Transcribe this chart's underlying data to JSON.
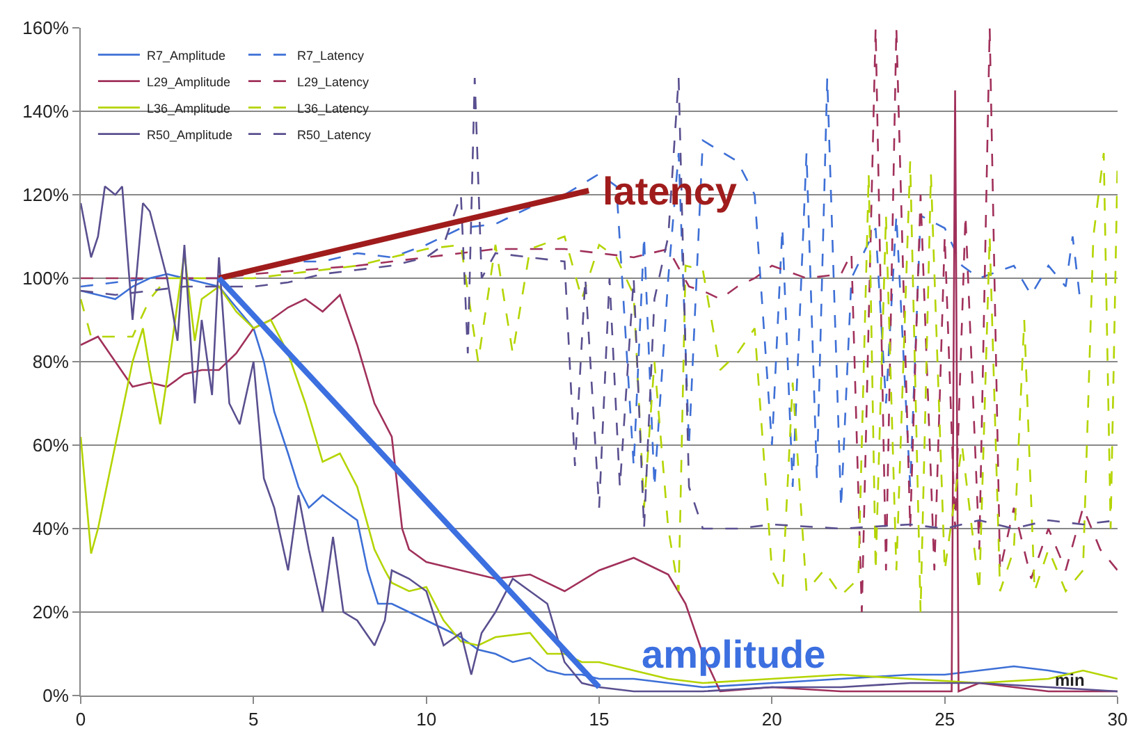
{
  "chart_data": {
    "type": "line",
    "xlabel": "min",
    "xlim": [
      0,
      30
    ],
    "xticks": [
      0,
      5,
      10,
      15,
      20,
      25,
      30
    ],
    "ylim": [
      0,
      160
    ],
    "yticks": [
      {
        "value": 0,
        "label": "0%"
      },
      {
        "value": 20,
        "label": "20%"
      },
      {
        "value": 40,
        "label": "40%"
      },
      {
        "value": 60,
        "label": "60%"
      },
      {
        "value": 80,
        "label": "80%"
      },
      {
        "value": 100,
        "label": "100%"
      },
      {
        "value": 120,
        "label": "120%"
      },
      {
        "value": 140,
        "label": "140%"
      },
      {
        "value": 160,
        "label": "160%"
      }
    ],
    "grid": "y",
    "legend": "top left",
    "marker": "none",
    "annotations": [
      "latency",
      "amplitude"
    ],
    "series": [
      {
        "name": "R7_Amplitude",
        "color": "#3d6fd6",
        "line_style": "solid",
        "x": [
          0,
          0.5,
          1,
          1.5,
          2,
          2.5,
          3,
          3.5,
          4,
          4.5,
          5,
          5.3,
          5.6,
          6,
          6.3,
          6.6,
          7,
          7.5,
          8,
          8.3,
          8.6,
          9,
          9.5,
          10,
          10.5,
          11,
          11.5,
          12,
          12.5,
          13,
          13.5,
          14,
          14.5,
          15,
          16,
          17,
          18,
          20,
          22,
          24,
          25,
          26,
          27,
          28,
          28.7
        ],
        "values": [
          97,
          96,
          95,
          98,
          100,
          101,
          100,
          99,
          98,
          93,
          88,
          80,
          68,
          58,
          50,
          45,
          48,
          45,
          42,
          30,
          22,
          22,
          20,
          18,
          16,
          14,
          11,
          10,
          8,
          9,
          6,
          5,
          5,
          4,
          4,
          3,
          2,
          3,
          4,
          5,
          5,
          6,
          7,
          6,
          5
        ]
      },
      {
        "name": "R7_Latency",
        "color": "#3d6fd6",
        "line_style": "dashed",
        "x": [
          0,
          1,
          2,
          3,
          4,
          5,
          6,
          7,
          8,
          9,
          10,
          11,
          12,
          13,
          14,
          15,
          15.5,
          16,
          16.3,
          16.6,
          17,
          17.3,
          17.6,
          18,
          19,
          19.5,
          20,
          20.3,
          20.6,
          21,
          21.3,
          21.6,
          22,
          22.3,
          23,
          23.3,
          23.6,
          24,
          24.3,
          25,
          25.5,
          26,
          27,
          27.5,
          28,
          28.5,
          28.7,
          28.9
        ],
        "values": [
          98,
          99,
          100,
          100,
          100,
          102,
          104,
          104,
          106,
          105,
          108,
          112,
          113,
          117,
          120,
          125,
          122,
          55,
          110,
          50,
          100,
          130,
          60,
          133,
          128,
          120,
          60,
          112,
          50,
          130,
          52,
          148,
          45,
          100,
          112,
          70,
          115,
          50,
          115,
          112,
          103,
          100,
          103,
          96,
          103,
          98,
          110,
          96
        ]
      },
      {
        "name": "L29_Amplitude",
        "color": "#a0305a",
        "line_style": "solid",
        "x": [
          0,
          0.5,
          1,
          1.5,
          2,
          2.5,
          3,
          3.5,
          4,
          4.5,
          5,
          5.5,
          6,
          6.5,
          7,
          7.5,
          8,
          8.5,
          9,
          9.3,
          9.5,
          10,
          11,
          12,
          13,
          14,
          15,
          16,
          17,
          17.5,
          18,
          18.5,
          20,
          22,
          24,
          25.2,
          25.3,
          25.4,
          26,
          27,
          28,
          30
        ],
        "values": [
          84,
          86,
          80,
          74,
          75,
          74,
          77,
          78,
          78,
          82,
          88,
          90,
          93,
          95,
          92,
          96,
          84,
          70,
          62,
          40,
          35,
          32,
          30,
          28,
          29,
          25,
          30,
          33,
          29,
          22,
          10,
          1,
          2,
          1,
          1,
          1,
          145,
          1,
          3,
          2,
          1,
          1
        ]
      },
      {
        "name": "L29_Latency",
        "color": "#a0305a",
        "line_style": "dashed",
        "x": [
          0,
          3,
          4,
          5,
          8,
          10,
          12,
          14,
          15,
          16,
          17,
          17.6,
          18,
          18.5,
          19,
          19.5,
          20,
          21,
          22,
          22.3,
          22.6,
          23,
          23.3,
          23.6,
          24,
          24.3,
          24.7,
          25,
          25.3,
          25.6,
          26,
          26.3,
          26.6,
          27,
          27.5,
          28,
          28.5,
          29,
          29.5,
          30
        ],
        "values": [
          100,
          100,
          100,
          101,
          103,
          105,
          107,
          107,
          106,
          105,
          107,
          98,
          97,
          95,
          98,
          100,
          103,
          100,
          101,
          106,
          20,
          160,
          30,
          160,
          40,
          120,
          30,
          110,
          40,
          115,
          35,
          160,
          30,
          45,
          28,
          40,
          30,
          45,
          35,
          30
        ]
      },
      {
        "name": "L36_Amplitude",
        "color": "#b4d400",
        "line_style": "solid",
        "x": [
          0,
          0.3,
          0.5,
          1,
          1.5,
          1.8,
          2,
          2.3,
          2.5,
          3,
          3.3,
          3.5,
          4,
          4.5,
          5,
          5.5,
          6,
          6.5,
          7,
          7.5,
          8,
          8.5,
          8.8,
          9,
          9.5,
          10,
          10.5,
          11,
          11.5,
          12,
          13,
          13.5,
          14,
          14.5,
          15,
          16,
          17,
          18,
          20,
          22,
          24,
          26,
          28,
          29,
          30
        ],
        "values": [
          62,
          34,
          40,
          60,
          80,
          88,
          78,
          65,
          76,
          106,
          85,
          95,
          98,
          92,
          88,
          90,
          82,
          70,
          56,
          58,
          50,
          35,
          30,
          27,
          25,
          26,
          18,
          13,
          12,
          14,
          15,
          10,
          10,
          8,
          8,
          6,
          4,
          3,
          4,
          5,
          4,
          3,
          4,
          6,
          4
        ]
      },
      {
        "name": "L36_Latency",
        "color": "#b4d400",
        "line_style": "dashed",
        "x": [
          0,
          0.3,
          1,
          1.5,
          2,
          2.5,
          3,
          4,
          5,
          6,
          8,
          10,
          11,
          11.5,
          12,
          12.5,
          13,
          14,
          14.5,
          15,
          15.5,
          16,
          16.3,
          16.6,
          17,
          17.3,
          17.5,
          18,
          18.5,
          19,
          19.5,
          20,
          20.3,
          20.6,
          21,
          21.5,
          22,
          22.5,
          22.8,
          23,
          23.3,
          23.6,
          24,
          24.3,
          24.6,
          25,
          25.5,
          26,
          26.3,
          26.6,
          27,
          27.3,
          27.6,
          28,
          28.5,
          29,
          29.3,
          29.6,
          29.8,
          30
        ],
        "values": [
          95,
          86,
          86,
          86,
          95,
          100,
          100,
          100,
          100,
          101,
          103,
          107,
          108,
          80,
          108,
          82,
          107,
          110,
          95,
          108,
          105,
          96,
          45,
          80,
          40,
          25,
          103,
          102,
          78,
          82,
          88,
          30,
          25,
          75,
          25,
          30,
          24,
          28,
          125,
          30,
          115,
          30,
          128,
          20,
          125,
          30,
          60,
          25,
          110,
          25,
          35,
          90,
          25,
          35,
          25,
          30,
          110,
          130,
          40,
          128
        ]
      },
      {
        "name": "R50_Amplitude",
        "color": "#5a4f8f",
        "line_style": "solid",
        "x": [
          0,
          0.3,
          0.5,
          0.7,
          1,
          1.2,
          1.5,
          1.8,
          2,
          2.5,
          2.8,
          3,
          3.3,
          3.5,
          3.8,
          4,
          4.3,
          4.6,
          5,
          5.3,
          5.6,
          6,
          6.3,
          6.6,
          7,
          7.3,
          7.6,
          8,
          8.5,
          8.8,
          9,
          9.5,
          10,
          10.5,
          11,
          11.3,
          11.6,
          12,
          12.5,
          13,
          13.5,
          14,
          14.5,
          15,
          16,
          18,
          20,
          22,
          24,
          26,
          28,
          30
        ],
        "values": [
          118,
          105,
          110,
          122,
          120,
          122,
          90,
          118,
          116,
          100,
          85,
          108,
          70,
          90,
          72,
          105,
          70,
          65,
          80,
          52,
          45,
          30,
          48,
          35,
          20,
          38,
          20,
          18,
          12,
          18,
          30,
          28,
          25,
          12,
          15,
          5,
          15,
          20,
          28,
          25,
          22,
          8,
          3,
          2,
          1,
          1,
          2,
          2,
          3,
          3,
          2,
          1
        ]
      },
      {
        "name": "R50_Latency",
        "color": "#5a4f8f",
        "line_style": "dashed",
        "x": [
          0,
          1,
          2,
          3,
          4,
          5,
          6,
          7,
          8,
          9,
          10,
          10.5,
          11,
          11.2,
          11.4,
          11.6,
          12,
          13,
          14,
          14.3,
          14.6,
          15,
          15.3,
          15.6,
          16,
          16.3,
          16.6,
          17,
          17.3,
          17.6,
          18,
          19,
          20,
          22,
          24,
          25,
          26,
          27,
          28,
          29,
          30
        ],
        "values": [
          97,
          96,
          97,
          98,
          98,
          98,
          99,
          101,
          102,
          103,
          105,
          108,
          120,
          82,
          148,
          100,
          106,
          105,
          104,
          55,
          100,
          45,
          100,
          50,
          100,
          40,
          95,
          110,
          148,
          50,
          40,
          40,
          41,
          40,
          41,
          40,
          42,
          40,
          42,
          41,
          42
        ]
      },
      {
        "type": "line",
        "color": "#a01c1c",
        "line_style": "solid",
        "x": [
          4,
          14.7
        ],
        "values": [
          100,
          121
        ]
      },
      {
        "type": "line",
        "color": "#3c6fe0",
        "line_style": "solid",
        "x": [
          4,
          15
        ],
        "values": [
          100,
          2
        ]
      }
    ]
  }
}
